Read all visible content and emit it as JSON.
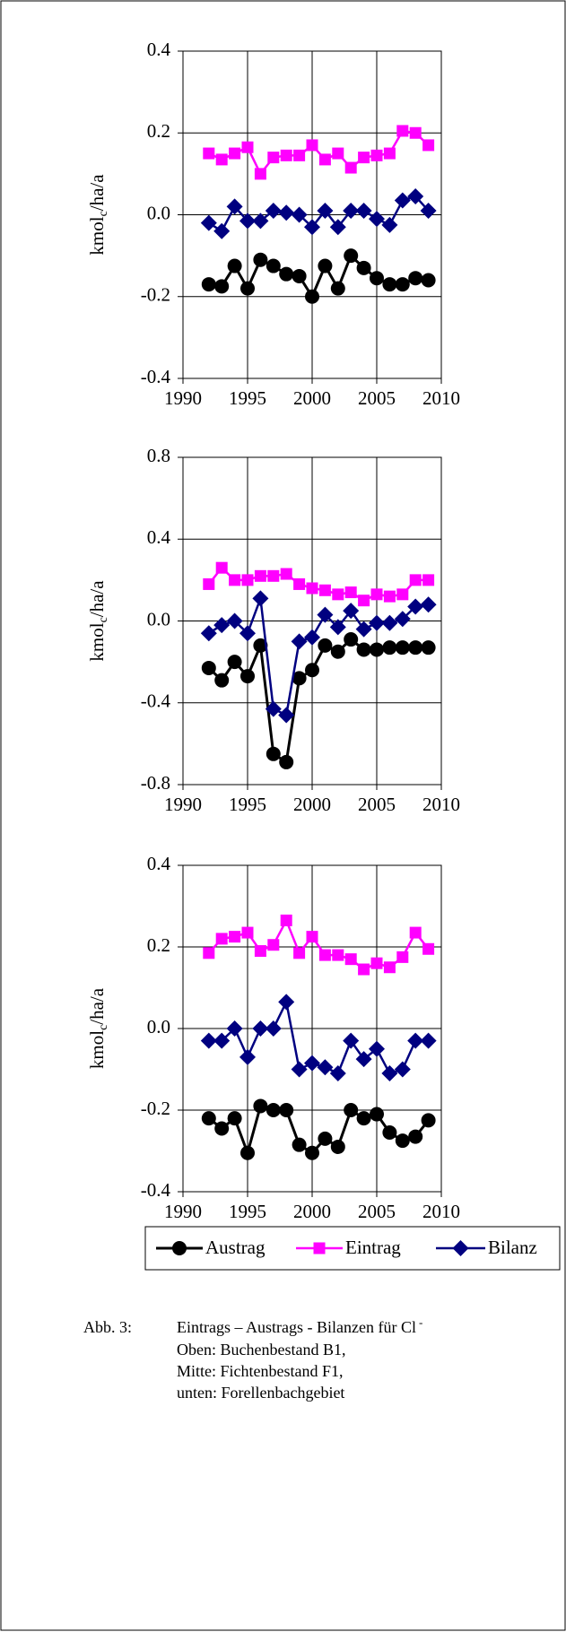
{
  "chart_data": [
    {
      "type": "line",
      "y_label": [
        "kmol",
        "c",
        "/ha/a"
      ],
      "xlim": [
        1990,
        2010
      ],
      "xticks": [
        1990,
        1995,
        2000,
        2005,
        2010
      ],
      "ylim": [
        -0.4,
        0.4
      ],
      "yticks": [
        -0.4,
        -0.2,
        {
          "value": 0,
          "label": "0.0"
        },
        0.2,
        0.4
      ],
      "grid": true,
      "x": [
        1992,
        1993,
        1994,
        1995,
        1996,
        1997,
        1998,
        1999,
        2000,
        2001,
        2002,
        2003,
        2004,
        2005,
        2006,
        2007,
        2008,
        2009
      ],
      "series": [
        {
          "name": "Austrag",
          "color": "#000000",
          "marker": "circle",
          "values": [
            -0.17,
            -0.175,
            -0.125,
            -0.18,
            -0.11,
            -0.125,
            -0.145,
            -0.15,
            -0.2,
            -0.125,
            -0.18,
            -0.1,
            -0.13,
            -0.155,
            -0.17,
            -0.17,
            -0.155,
            -0.16
          ]
        },
        {
          "name": "Eintrag",
          "color": "#ff00ff",
          "marker": "square",
          "values": [
            0.15,
            0.135,
            0.15,
            0.165,
            0.1,
            0.14,
            0.145,
            0.145,
            0.17,
            0.135,
            0.15,
            0.115,
            0.14,
            0.145,
            0.15,
            0.205,
            0.2,
            0.17
          ]
        },
        {
          "name": "Bilanz",
          "color": "#000080",
          "marker": "diamond",
          "values": [
            -0.02,
            -0.04,
            0.02,
            -0.015,
            -0.015,
            0.01,
            0.005,
            0,
            -0.03,
            0.01,
            -0.03,
            0.01,
            0.01,
            -0.01,
            -0.025,
            0.035,
            0.045,
            0.01
          ]
        }
      ]
    },
    {
      "type": "line",
      "y_label": [
        "kmol",
        "c",
        "/ha/a"
      ],
      "xlim": [
        1990,
        2010
      ],
      "xticks": [
        1990,
        1995,
        2000,
        2005,
        2010
      ],
      "ylim": [
        -0.8,
        0.8
      ],
      "yticks": [
        -0.8,
        -0.4,
        {
          "value": 0,
          "label": "0.0"
        },
        0.4,
        0.8
      ],
      "grid": true,
      "x": [
        1992,
        1993,
        1994,
        1995,
        1996,
        1997,
        1998,
        1999,
        2000,
        2001,
        2002,
        2003,
        2004,
        2005,
        2006,
        2007,
        2008,
        2009
      ],
      "series": [
        {
          "name": "Austrag",
          "color": "#000000",
          "marker": "circle",
          "values": [
            -0.23,
            -0.29,
            -0.2,
            -0.27,
            -0.12,
            -0.65,
            -0.69,
            -0.28,
            -0.24,
            -0.12,
            -0.15,
            -0.09,
            -0.14,
            -0.14,
            -0.13,
            -0.13,
            -0.13,
            -0.13
          ]
        },
        {
          "name": "Eintrag",
          "color": "#ff00ff",
          "marker": "square",
          "values": [
            0.18,
            0.26,
            0.2,
            0.2,
            0.22,
            0.22,
            0.23,
            0.18,
            0.16,
            0.15,
            0.13,
            0.14,
            0.1,
            0.13,
            0.12,
            0.13,
            0.2,
            0.2
          ]
        },
        {
          "name": "Bilanz",
          "color": "#000080",
          "marker": "diamond",
          "values": [
            -0.06,
            -0.02,
            0,
            -0.06,
            0.11,
            -0.43,
            -0.46,
            -0.1,
            -0.08,
            0.03,
            -0.03,
            0.05,
            -0.04,
            -0.01,
            -0.01,
            0.01,
            0.07,
            0.08
          ]
        }
      ]
    },
    {
      "type": "line",
      "y_label": [
        "kmol",
        "c",
        "/ha/a"
      ],
      "xlim": [
        1990,
        2010
      ],
      "xticks": [
        1990,
        1995,
        2000,
        2005,
        2010
      ],
      "ylim": [
        -0.4,
        0.4
      ],
      "yticks": [
        -0.4,
        -0.2,
        {
          "value": 0,
          "label": "0.0"
        },
        0.2,
        0.4
      ],
      "grid": true,
      "x": [
        1992,
        1993,
        1994,
        1995,
        1996,
        1997,
        1998,
        1999,
        2000,
        2001,
        2002,
        2003,
        2004,
        2005,
        2006,
        2007,
        2008,
        2009
      ],
      "series": [
        {
          "name": "Austrag",
          "color": "#000000",
          "marker": "circle",
          "values": [
            -0.22,
            -0.245,
            -0.22,
            -0.305,
            -0.19,
            -0.2,
            -0.2,
            -0.285,
            -0.305,
            -0.27,
            -0.29,
            -0.2,
            -0.22,
            -0.21,
            -0.255,
            -0.275,
            -0.265,
            -0.225
          ]
        },
        {
          "name": "Eintrag",
          "color": "#ff00ff",
          "marker": "square",
          "values": [
            0.185,
            0.22,
            0.225,
            0.235,
            0.19,
            0.205,
            0.265,
            0.185,
            0.225,
            0.18,
            0.18,
            0.17,
            0.145,
            0.16,
            0.15,
            0.175,
            0.235,
            0.195
          ]
        },
        {
          "name": "Bilanz",
          "color": "#000080",
          "marker": "diamond",
          "values": [
            -0.03,
            -0.03,
            0,
            -0.07,
            0,
            0,
            0.065,
            -0.1,
            -0.085,
            -0.095,
            -0.11,
            -0.03,
            -0.075,
            -0.05,
            -0.11,
            -0.1,
            -0.03,
            -0.03
          ]
        }
      ]
    }
  ],
  "caption": {
    "label": "Abb. 3:",
    "title": "Eintrags – Austrags - Bilanzen für Cl",
    "title_sup": "-",
    "lines": [
      "Oben: Buchenbestand B1,",
      "Mitte: Fichtenbestand F1,",
      "unten: Forellenbachgebiet"
    ]
  }
}
